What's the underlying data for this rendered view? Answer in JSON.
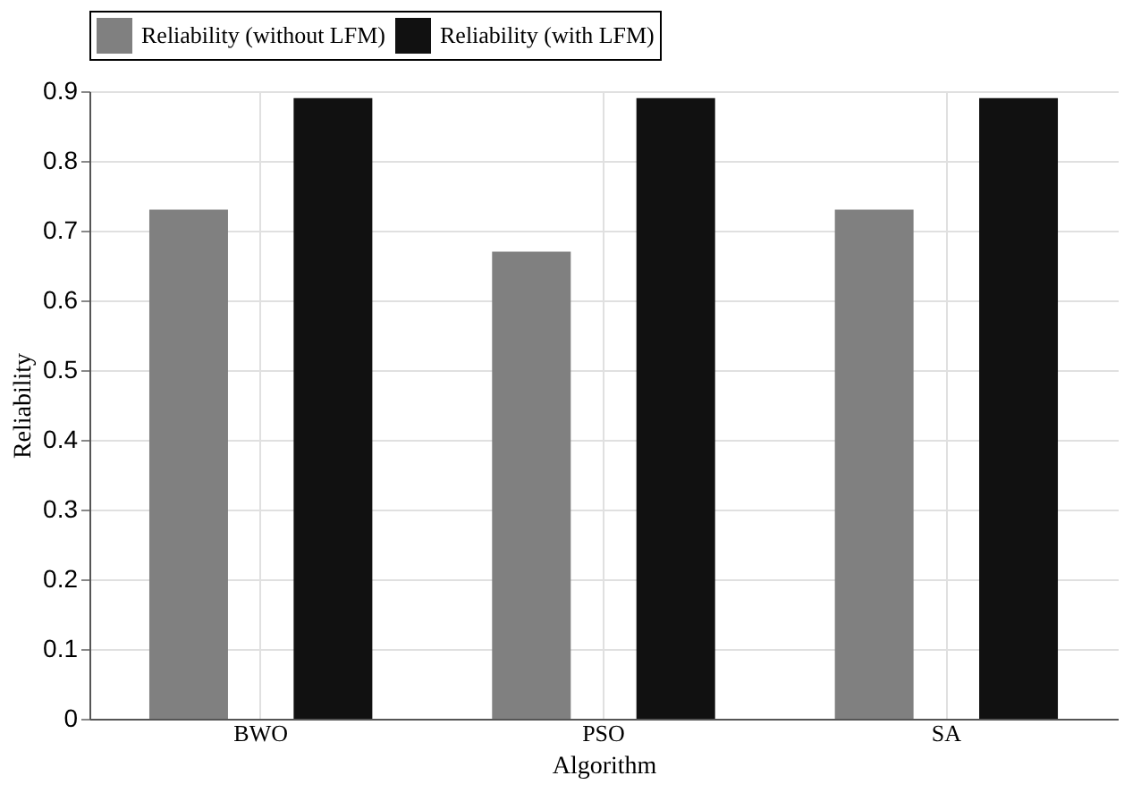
{
  "chart_data": {
    "type": "bar",
    "xlabel": "Algorithm",
    "ylabel": "Reliability",
    "categories": [
      "BWO",
      "PSO",
      "SA"
    ],
    "series": [
      {
        "name": "Reliability (without LFM)",
        "color": "#808080",
        "values": [
          0.73,
          0.67,
          0.73
        ]
      },
      {
        "name": "Reliability (with LFM)",
        "color": "#111111",
        "values": [
          0.89,
          0.89,
          0.89
        ]
      }
    ],
    "ylim": [
      0,
      0.9
    ],
    "yticks": [
      0,
      0.1,
      0.2,
      0.3,
      0.4,
      0.5,
      0.6,
      0.7,
      0.8,
      0.9
    ],
    "grid": true,
    "legend": "top"
  }
}
